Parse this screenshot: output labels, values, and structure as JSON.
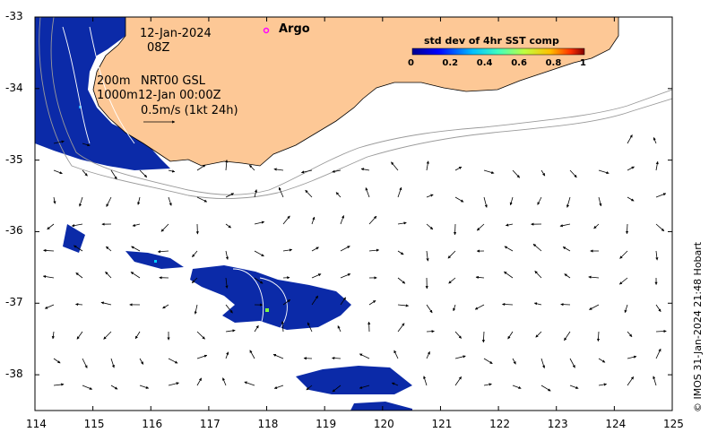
{
  "map": {
    "date_label": "12-Jan-2024",
    "time_label": "08Z",
    "contour_label_200": "200m",
    "contour_label_1000": "1000m",
    "product_label": "NRT00 GSL",
    "product_time": "12-Jan 00:00Z",
    "scale_label": "0.5m/s (1kt 24h)",
    "argo_label": "Argo",
    "credit": "© IMOS 31-Jan-2024 21:48 Hobart",
    "colors": {
      "land": "#fdc896",
      "sst_low": "#0a1e9c",
      "argo_marker": "#ff00ff",
      "contour": "#9a9a9a"
    }
  },
  "colorbar": {
    "title": "std dev of 4hr SST comp",
    "ticks": [
      "0",
      "0.2",
      "0.4",
      "0.6",
      "0.8",
      "1"
    ],
    "range": [
      0,
      1
    ]
  },
  "axes": {
    "x_ticks": [
      "114",
      "115",
      "116",
      "117",
      "118",
      "119",
      "120",
      "121",
      "122",
      "123",
      "124",
      "125"
    ],
    "y_ticks": [
      "-33",
      "-34",
      "-35",
      "-36",
      "-37",
      "-38"
    ],
    "lon_range": [
      114,
      125
    ],
    "lat_range": [
      -38.5,
      -33
    ]
  }
}
